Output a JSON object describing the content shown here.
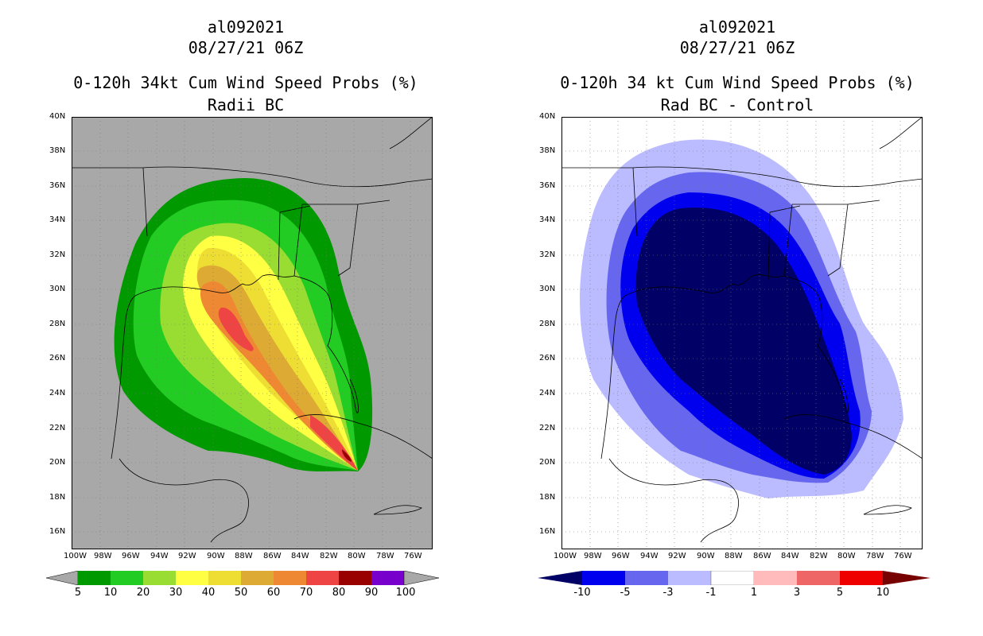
{
  "left": {
    "storm_id": "al092021",
    "datetime": "08/27/21 06Z",
    "title": "0-120h 34kt Cum Wind Speed Probs (%)",
    "subtitle": "Radii BC",
    "colorbar_labels": [
      "5",
      "10",
      "20",
      "30",
      "40",
      "50",
      "60",
      "70",
      "80",
      "90",
      "100"
    ],
    "colors": {
      "background": "#a8a8a8",
      "p5": "#009900",
      "p10": "#22cc22",
      "p20": "#99dd33",
      "p30": "#ffff44",
      "p40": "#eedd33",
      "p50": "#ddaa33",
      "p60": "#ee8833",
      "p70": "#ee4444",
      "p80": "#990000",
      "p90": "#7700cc"
    }
  },
  "right": {
    "storm_id": "al092021",
    "datetime": "08/27/21 06Z",
    "title": "0-120h 34 kt Cum Wind Speed Probs (%)",
    "subtitle": "Rad BC - Control",
    "colorbar_labels": [
      "-10",
      "-5",
      "-3",
      "-1",
      "1",
      "3",
      "5",
      "10"
    ],
    "colors": {
      "background": "#ffffff",
      "n10": "#000066",
      "n5": "#0000ee",
      "n3": "#6666ee",
      "n1": "#bbbbff",
      "p1": "#ffbbbb",
      "p3": "#ee6666",
      "p5": "#ee0000",
      "p10": "#770000"
    }
  },
  "axes": {
    "lat_labels": [
      "40N",
      "38N",
      "36N",
      "34N",
      "32N",
      "30N",
      "28N",
      "26N",
      "24N",
      "22N",
      "20N",
      "18N",
      "16N"
    ],
    "lon_labels": [
      "100W",
      "98W",
      "96W",
      "94W",
      "92W",
      "90W",
      "88W",
      "86W",
      "84W",
      "82W",
      "80W",
      "78W",
      "76W"
    ]
  }
}
